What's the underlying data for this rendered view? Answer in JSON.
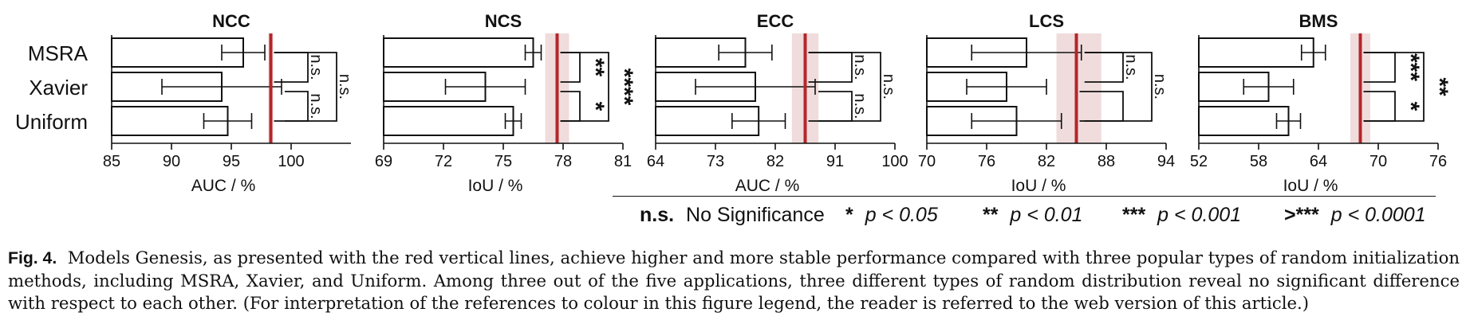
{
  "chart_data": [
    {
      "type": "bar",
      "title": "NCC",
      "xlabel": "AUC / %",
      "categories": [
        "MSRA",
        "Xavier",
        "Uniform"
      ],
      "values": [
        96.0,
        94.2,
        94.7
      ],
      "errors": [
        1.8,
        5.0,
        2.0
      ],
      "xlim": [
        85,
        105
      ],
      "xticks": [
        "85",
        "90",
        "95",
        "100"
      ],
      "reference": {
        "value": 98.3,
        "band": [
          98.1,
          98.5
        ]
      },
      "significance": [
        {
          "pair": [
            "MSRA",
            "Xavier"
          ],
          "label": "n.s."
        },
        {
          "pair": [
            "Xavier",
            "Uniform"
          ],
          "label": "n.s."
        },
        {
          "pair": [
            "MSRA",
            "Uniform"
          ],
          "label": "n.s."
        }
      ]
    },
    {
      "type": "bar",
      "title": "NCS",
      "xlabel": "IoU / %",
      "categories": [
        "MSRA",
        "Xavier",
        "Uniform"
      ],
      "values": [
        76.5,
        74.1,
        75.5
      ],
      "errors": [
        0.4,
        2.0,
        0.4
      ],
      "xlim": [
        69,
        81
      ],
      "xticks": [
        "69",
        "72",
        "75",
        "78",
        "81"
      ],
      "reference": {
        "value": 77.7,
        "band": [
          77.1,
          78.3
        ]
      },
      "significance": [
        {
          "pair": [
            "MSRA",
            "Xavier"
          ],
          "label": "**"
        },
        {
          "pair": [
            "Xavier",
            "Uniform"
          ],
          "label": "*"
        },
        {
          "pair": [
            "MSRA",
            "Uniform"
          ],
          "label": "****"
        }
      ]
    },
    {
      "type": "bar",
      "title": "ECC",
      "xlabel": "AUC / %",
      "categories": [
        "MSRA",
        "Xavier",
        "Uniform"
      ],
      "values": [
        77.5,
        79.0,
        79.5
      ],
      "errors": [
        4.0,
        9.0,
        4.0
      ],
      "xlim": [
        64,
        100
      ],
      "xticks": [
        "64",
        "73",
        "82",
        "91",
        "100"
      ],
      "reference": {
        "value": 86.5,
        "band": [
          84.5,
          88.5
        ]
      },
      "significance": [
        {
          "pair": [
            "MSRA",
            "Xavier"
          ],
          "label": "n.s."
        },
        {
          "pair": [
            "Xavier",
            "Uniform"
          ],
          "label": "n.s."
        },
        {
          "pair": [
            "MSRA",
            "Uniform"
          ],
          "label": "n.s."
        }
      ]
    },
    {
      "type": "bar",
      "title": "LCS",
      "xlabel": "IoU / %",
      "categories": [
        "MSRA",
        "Xavier",
        "Uniform"
      ],
      "values": [
        80.0,
        78.0,
        79.0
      ],
      "errors": [
        5.5,
        4.0,
        4.5
      ],
      "xlim": [
        70,
        94
      ],
      "xticks": [
        "70",
        "76",
        "82",
        "88",
        "94"
      ],
      "reference": {
        "value": 85.0,
        "band": [
          83.0,
          87.5
        ]
      },
      "significance": [
        {
          "pair": [
            "MSRA",
            "Xavier"
          ],
          "label": "n.s."
        },
        {
          "pair": [
            "Xavier",
            "Uniform"
          ],
          "label": ""
        },
        {
          "pair": [
            "MSRA",
            "Uniform"
          ],
          "label": "n.s."
        }
      ]
    },
    {
      "type": "bar",
      "title": "BMS",
      "xlabel": "IoU / %",
      "categories": [
        "MSRA",
        "Xavier",
        "Uniform"
      ],
      "values": [
        63.5,
        59.0,
        61.0
      ],
      "errors": [
        1.2,
        2.5,
        1.2
      ],
      "xlim": [
        52,
        76
      ],
      "xticks": [
        "52",
        "58",
        "64",
        "70",
        "76"
      ],
      "reference": {
        "value": 68.2,
        "band": [
          67.2,
          69.2
        ]
      },
      "significance": [
        {
          "pair": [
            "MSRA",
            "Xavier"
          ],
          "label": "***"
        },
        {
          "pair": [
            "Xavier",
            "Uniform"
          ],
          "label": "*"
        },
        {
          "pair": [
            "MSRA",
            "Uniform"
          ],
          "label": "**"
        }
      ]
    }
  ],
  "colors": {
    "reference_line": "#b3262a",
    "reference_band": "#f0dcdc",
    "ink": "#111111"
  },
  "legend": [
    {
      "symbol": "n.s.",
      "meaning": "No Significance",
      "bold": true
    },
    {
      "symbol": "*",
      "meaning": "p < 0.05"
    },
    {
      "symbol": "**",
      "meaning": "p < 0.01"
    },
    {
      "symbol": "***",
      "meaning": "p < 0.001"
    },
    {
      "symbol": ">***",
      "meaning": "p < 0.0001"
    }
  ],
  "caption": {
    "label": "Fig. 4.",
    "text": "Models Genesis, as presented with the red vertical lines, achieve higher and more stable performance compared with three popular types of random initialization methods, including MSRA, Xavier, and Uniform. Among three out of the five applications, three different types of random distribution reveal no significant difference with respect to each other. (For interpretation of the references to colour in this figure legend, the reader is referred to the web version of this article.)"
  }
}
